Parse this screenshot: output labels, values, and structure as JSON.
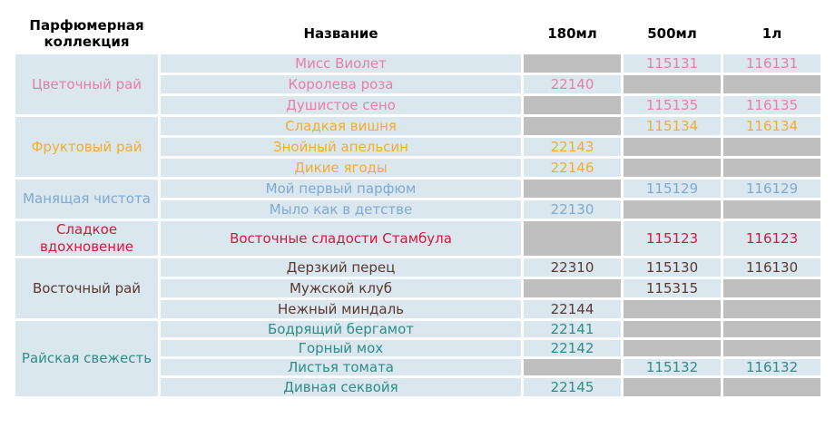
{
  "headers": {
    "collection": "Парфюмерная коллекция",
    "name": "Название",
    "ml180": "180мл",
    "ml500": "500мл",
    "l1": "1л"
  },
  "colors": {
    "flower": "#e67fa6",
    "fruit": "#f2ad2a",
    "clean": "#7fa9d2",
    "sweet": "#d3183e",
    "east": "#5a3830",
    "fresh": "#2f8c88",
    "row_bg": "#dbe7ef",
    "empty_bg": "#bfbfbf"
  },
  "groups": [
    {
      "collection": "Цветочный рай",
      "color": "#e67fa6",
      "items": [
        {
          "name": "Мисс Виолет",
          "ml180": "",
          "ml500": "115131",
          "l1": "116131"
        },
        {
          "name": "Королева роза",
          "ml180": "22140",
          "ml500": "",
          "l1": ""
        },
        {
          "name": "Душистое сено",
          "ml180": "",
          "ml500": "115135",
          "l1": "116135"
        }
      ]
    },
    {
      "collection": "Фруктовый рай",
      "color": "#f2ad2a",
      "items": [
        {
          "name": "Сладкая вишня",
          "ml180": "",
          "ml500": "115134",
          "l1": "116134"
        },
        {
          "name": "Знойный апельсин",
          "ml180": "22143",
          "ml500": "",
          "l1": ""
        },
        {
          "name": "Дикие ягоды",
          "ml180": "22146",
          "ml500": "",
          "l1": ""
        }
      ]
    },
    {
      "collection": "Манящая чистота",
      "color": "#7fa9d2",
      "items": [
        {
          "name": "Мой первый парфюм",
          "ml180": "",
          "ml500": "115129",
          "l1": "116129"
        },
        {
          "name": "Мыло как в детстве",
          "ml180": "22130",
          "ml500": "",
          "l1": ""
        }
      ]
    },
    {
      "collection": "Сладкое вдохновение",
      "color": "#d3183e",
      "items": [
        {
          "name": "Восточные сладости Стамбула",
          "ml180": "",
          "ml500": "115123",
          "l1": "116123"
        }
      ]
    },
    {
      "collection": "Восточный рай",
      "color": "#5a3830",
      "items": [
        {
          "name": "Дерзкий перец",
          "ml180": "22310",
          "ml500": "115130",
          "l1": "116130"
        },
        {
          "name": "Мужской клуб",
          "ml180": "",
          "ml500": "115315",
          "l1": ""
        },
        {
          "name": "Нежный миндаль",
          "ml180": "22144",
          "ml500": "",
          "l1": ""
        }
      ]
    },
    {
      "collection": "Райская свежесть",
      "color": "#2f8c88",
      "items": [
        {
          "name": "Бодрящий бергамот",
          "ml180": "22141",
          "ml500": "",
          "l1": ""
        },
        {
          "name": "Горный мох",
          "ml180": "22142",
          "ml500": "",
          "l1": ""
        },
        {
          "name": "Листья томата",
          "ml180": "",
          "ml500": "115132",
          "l1": "116132"
        },
        {
          "name": "Дивная секвойя",
          "ml180": "22145",
          "ml500": "",
          "l1": ""
        }
      ]
    }
  ]
}
